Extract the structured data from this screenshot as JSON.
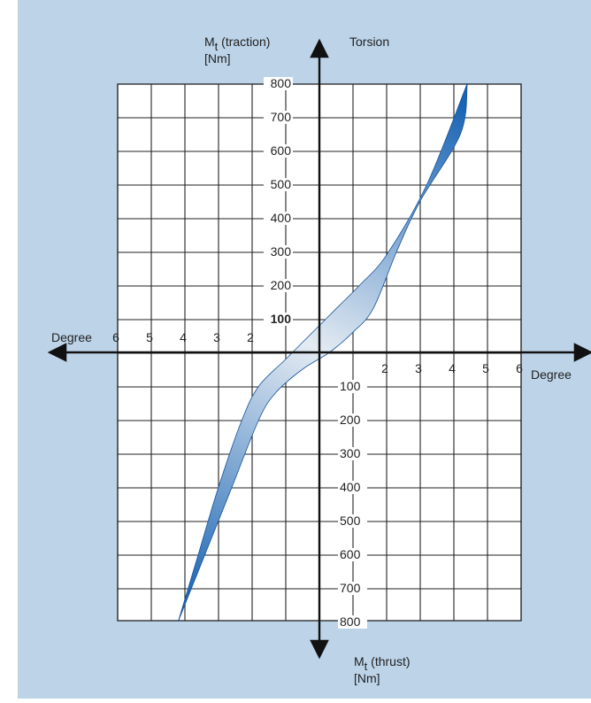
{
  "chart_data": {
    "type": "area",
    "title": "",
    "top_label": "Torsion",
    "y_axis_top_label": {
      "main": "M",
      "sub": "t",
      "rest": " (traction)",
      "unit": "[Nm]"
    },
    "y_axis_bottom_label": {
      "main": "M",
      "sub": "t",
      "rest": " (thrust)",
      "unit": "[Nm]"
    },
    "x_label_left": "Degree",
    "x_label_right": "Degree",
    "x_range": [
      -6,
      6
    ],
    "y_range": [
      -800,
      800
    ],
    "grid": true,
    "x_ticks_left": [
      "6",
      "5",
      "4",
      "3",
      "2"
    ],
    "x_ticks_right": [
      "2",
      "3",
      "4",
      "5",
      "6"
    ],
    "y_ticks_top": [
      "800",
      "700",
      "600",
      "500",
      "400",
      "300",
      "200",
      "100"
    ],
    "y_ticks_bottom": [
      "100",
      "200",
      "300",
      "400",
      "500",
      "600",
      "700",
      "800"
    ],
    "colors": {
      "background": "#bcd3e8",
      "band_dark": "#1a64b4",
      "band_light": "#e4ebf2",
      "grid": "#222222",
      "axis": "#111111"
    },
    "series": [
      {
        "points": [
          [
            -4.2,
            -800
          ],
          [
            -3.6,
            -600
          ],
          [
            -3.0,
            -400
          ],
          [
            -2.3,
            -200
          ],
          [
            -1.8,
            -100
          ],
          [
            -1.0,
            -20
          ],
          [
            0.0,
            80
          ],
          [
            0.6,
            140
          ],
          [
            1.2,
            200
          ],
          [
            2.0,
            290
          ],
          [
            3.2,
            500
          ],
          [
            4.4,
            800
          ]
        ]
      },
      {
        "points": [
          [
            -4.2,
            -800
          ],
          [
            -3.4,
            -600
          ],
          [
            -2.6,
            -400
          ],
          [
            -1.8,
            -200
          ],
          [
            -1.3,
            -120
          ],
          [
            -0.5,
            -50
          ],
          [
            0.3,
            0
          ],
          [
            1.0,
            60
          ],
          [
            1.6,
            130
          ],
          [
            2.3,
            300
          ],
          [
            3.0,
            450
          ],
          [
            4.2,
            650
          ],
          [
            4.4,
            800
          ]
        ]
      }
    ]
  }
}
